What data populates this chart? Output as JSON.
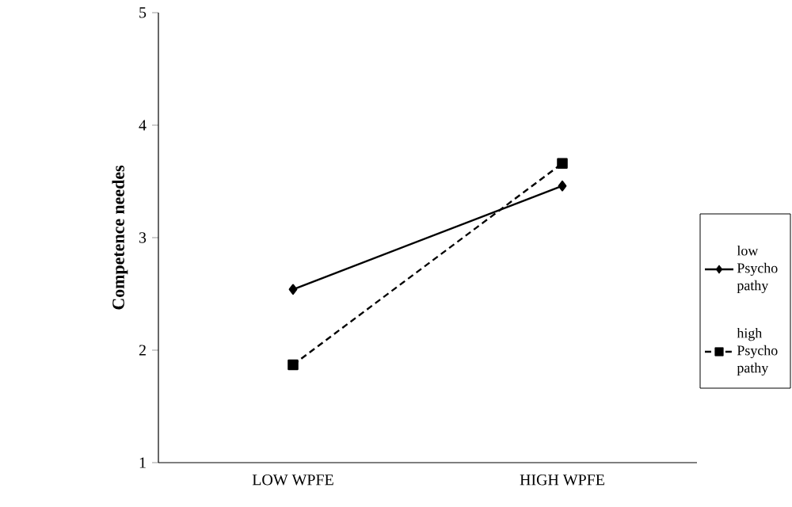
{
  "chart_data": {
    "type": "line",
    "ylabel": "Competence needes",
    "categories": [
      "LOW WPFE",
      "HIGH WPFE"
    ],
    "series": [
      {
        "name": "low Psycho pathy",
        "color": "#000000",
        "values": [
          2.54,
          3.46
        ],
        "marker": "diamond",
        "line_style": "solid"
      },
      {
        "name": "high Psycho pathy",
        "color": "#000000",
        "values": [
          1.87,
          3.66
        ],
        "marker": "square",
        "line_style": "dashed"
      }
    ],
    "ylim": [
      1,
      5
    ],
    "yticks": [
      1,
      2,
      3,
      4,
      5
    ],
    "grid": false,
    "legend": "right"
  }
}
